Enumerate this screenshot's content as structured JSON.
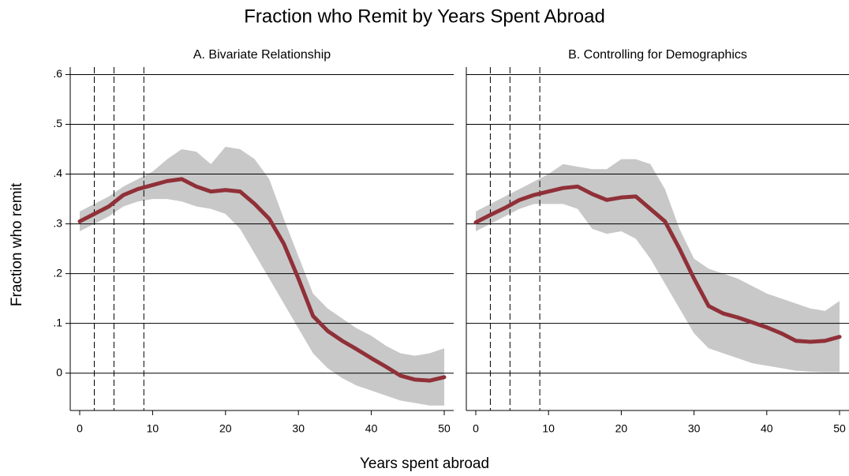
{
  "title": "Fraction who Remit by Years Spent Abroad",
  "xlabel": "Years spent abroad",
  "ylabel": "Fraction who remit",
  "chart_data": [
    {
      "type": "line",
      "title": "A. Bivariate Relationship",
      "x": [
        0,
        2,
        4,
        6,
        8,
        10,
        12,
        14,
        16,
        18,
        20,
        22,
        24,
        26,
        28,
        30,
        32,
        34,
        36,
        38,
        40,
        42,
        44,
        46,
        48,
        50
      ],
      "values": [
        0.305,
        0.32,
        0.335,
        0.358,
        0.37,
        0.378,
        0.386,
        0.39,
        0.375,
        0.365,
        0.368,
        0.365,
        0.34,
        0.31,
        0.26,
        0.19,
        0.115,
        0.085,
        0.065,
        0.048,
        0.03,
        0.013,
        -0.005,
        -0.013,
        -0.015,
        -0.008
      ],
      "lower": [
        0.285,
        0.3,
        0.315,
        0.335,
        0.345,
        0.35,
        0.35,
        0.345,
        0.335,
        0.33,
        0.32,
        0.29,
        0.24,
        0.19,
        0.14,
        0.09,
        0.04,
        0.01,
        -0.01,
        -0.025,
        -0.035,
        -0.045,
        -0.055,
        -0.06,
        -0.065,
        -0.065
      ],
      "upper": [
        0.325,
        0.34,
        0.355,
        0.375,
        0.39,
        0.405,
        0.43,
        0.45,
        0.445,
        0.42,
        0.455,
        0.45,
        0.43,
        0.39,
        0.31,
        0.235,
        0.16,
        0.13,
        0.11,
        0.09,
        0.075,
        0.055,
        0.04,
        0.035,
        0.04,
        0.05
      ],
      "color": "#903038",
      "band_color": "#c8c8c8",
      "vlines": [
        2,
        4.7,
        8.8
      ],
      "xlim": [
        -1.3,
        51.3
      ],
      "xticks": [
        0,
        10,
        20,
        30,
        40,
        50
      ],
      "ylim": [
        -0.075,
        0.615
      ],
      "yticks": [
        0,
        {
          "value": 0.1,
          "label": ".1"
        },
        {
          "value": 0.2,
          "label": ".2"
        },
        {
          "value": 0.3,
          "label": ".3"
        },
        {
          "value": 0.4,
          "label": ".4"
        },
        {
          "value": 0.5,
          "label": ".5"
        },
        {
          "value": 0.6,
          "label": ".6"
        }
      ],
      "grid": true,
      "show_yticklabels": true
    },
    {
      "type": "line",
      "title": "B. Controlling for Demographics",
      "x": [
        0,
        2,
        4,
        6,
        8,
        10,
        12,
        14,
        16,
        18,
        20,
        22,
        24,
        26,
        28,
        30,
        32,
        34,
        36,
        38,
        40,
        42,
        44,
        46,
        48,
        50
      ],
      "values": [
        0.303,
        0.318,
        0.332,
        0.348,
        0.358,
        0.365,
        0.372,
        0.375,
        0.36,
        0.348,
        0.353,
        0.355,
        0.33,
        0.305,
        0.25,
        0.19,
        0.135,
        0.12,
        0.112,
        0.102,
        0.092,
        0.08,
        0.065,
        0.063,
        0.065,
        0.073
      ],
      "lower": [
        0.285,
        0.3,
        0.315,
        0.33,
        0.34,
        0.34,
        0.34,
        0.33,
        0.29,
        0.28,
        0.285,
        0.27,
        0.23,
        0.18,
        0.13,
        0.08,
        0.05,
        0.04,
        0.03,
        0.02,
        0.015,
        0.01,
        0.005,
        0.003,
        0.002,
        0.002
      ],
      "upper": [
        0.325,
        0.34,
        0.355,
        0.37,
        0.385,
        0.4,
        0.42,
        0.415,
        0.41,
        0.41,
        0.43,
        0.43,
        0.42,
        0.37,
        0.29,
        0.23,
        0.21,
        0.2,
        0.19,
        0.175,
        0.16,
        0.15,
        0.14,
        0.13,
        0.125,
        0.145
      ],
      "color": "#903038",
      "band_color": "#c8c8c8",
      "vlines": [
        2,
        4.7,
        8.8
      ],
      "xlim": [
        -1.3,
        51.3
      ],
      "xticks": [
        0,
        10,
        20,
        30,
        40,
        50
      ],
      "ylim": [
        -0.075,
        0.615
      ],
      "yticks": [
        0,
        {
          "value": 0.1,
          "label": ".1"
        },
        {
          "value": 0.2,
          "label": ".2"
        },
        {
          "value": 0.3,
          "label": ".3"
        },
        {
          "value": 0.4,
          "label": ".4"
        },
        {
          "value": 0.5,
          "label": ".5"
        },
        {
          "value": 0.6,
          "label": ".6"
        }
      ],
      "grid": true,
      "show_yticklabels": false
    }
  ]
}
